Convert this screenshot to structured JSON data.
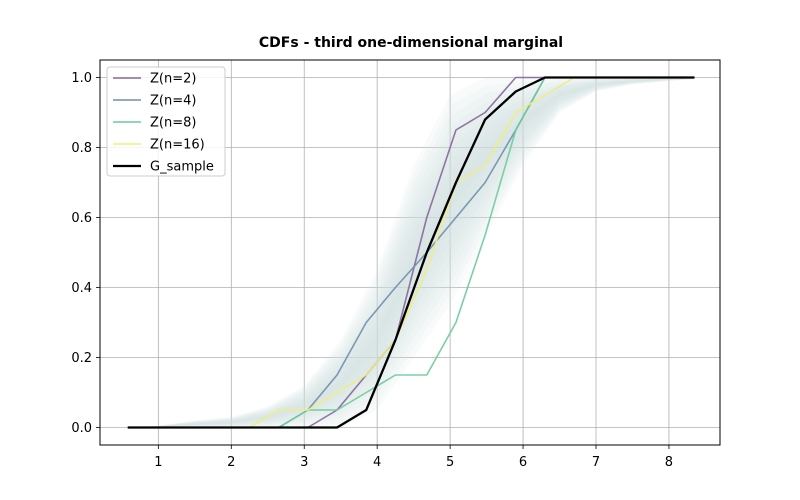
{
  "chart_data": {
    "type": "line",
    "title": "CDFs - third one-dimensional marginal",
    "xlabel": "",
    "ylabel": "",
    "xlim": [
      0.2,
      8.7
    ],
    "ylim": [
      -0.05,
      1.05
    ],
    "xticks": [
      1,
      2,
      3,
      4,
      5,
      6,
      7,
      8
    ],
    "yticks": [
      0.0,
      0.2,
      0.4,
      0.6,
      0.8,
      1.0
    ],
    "ytick_labels": [
      "0.0",
      "0.2",
      "0.4",
      "0.6",
      "0.8",
      "1.0"
    ],
    "grid": true,
    "legend_position": "top-left",
    "band": {
      "color": "#cfe3e3",
      "x": [
        0.58,
        1.0,
        1.5,
        2.0,
        2.5,
        3.0,
        3.5,
        4.0,
        4.5,
        5.0,
        5.5,
        6.0,
        6.5,
        7.0,
        7.5,
        8.0,
        8.35
      ],
      "lower": [
        0.0,
        0.0,
        0.0,
        0.0,
        0.0,
        0.0,
        0.0,
        0.05,
        0.2,
        0.35,
        0.55,
        0.75,
        0.9,
        0.96,
        0.98,
        0.99,
        0.995
      ],
      "upper": [
        0.0,
        0.005,
        0.02,
        0.03,
        0.06,
        0.12,
        0.25,
        0.45,
        0.75,
        0.95,
        1.0,
        1.0,
        1.0,
        1.0,
        1.0,
        1.0,
        1.0
      ]
    },
    "series": [
      {
        "name": "Z(n=2)",
        "color": "#85679a",
        "x": [
          0.58,
          3.05,
          3.45,
          3.85,
          4.25,
          4.68,
          5.08,
          5.48,
          5.9,
          6.3,
          8.35
        ],
        "values": [
          0.0,
          0.0,
          0.05,
          0.15,
          0.25,
          0.6,
          0.85,
          0.9,
          1.0,
          1.0,
          1.0
        ]
      },
      {
        "name": "Z(n=4)",
        "color": "#6f8fad",
        "x": [
          0.58,
          2.65,
          3.05,
          3.45,
          3.85,
          4.25,
          4.68,
          5.08,
          5.48,
          5.9,
          6.3,
          8.35
        ],
        "values": [
          0.0,
          0.0,
          0.05,
          0.15,
          0.3,
          0.4,
          0.5,
          0.6,
          0.7,
          0.85,
          1.0,
          1.0
        ]
      },
      {
        "name": "Z(n=8)",
        "color": "#6ccb99",
        "x": [
          0.58,
          2.65,
          3.05,
          3.45,
          3.85,
          4.25,
          4.68,
          5.08,
          5.48,
          5.9,
          6.3,
          8.35
        ],
        "values": [
          0.0,
          0.0,
          0.05,
          0.05,
          0.1,
          0.15,
          0.15,
          0.3,
          0.55,
          0.85,
          1.0,
          1.0
        ]
      },
      {
        "name": "Z(n=16)",
        "color": "#f0ee78",
        "x": [
          0.58,
          2.25,
          2.65,
          3.05,
          3.45,
          3.85,
          4.25,
          4.68,
          5.08,
          5.48,
          5.9,
          6.3,
          6.7,
          8.35
        ],
        "values": [
          0.0,
          0.0,
          0.05,
          0.05,
          0.1,
          0.15,
          0.25,
          0.45,
          0.7,
          0.75,
          0.9,
          0.95,
          1.0,
          1.0
        ]
      },
      {
        "name": "G_sample",
        "color": "#000000",
        "x": [
          0.58,
          3.45,
          3.85,
          4.25,
          4.68,
          5.08,
          5.48,
          5.9,
          6.3,
          8.35
        ],
        "values": [
          0.0,
          0.0,
          0.05,
          0.25,
          0.5,
          0.7,
          0.88,
          0.96,
          1.0,
          1.0
        ]
      }
    ]
  }
}
